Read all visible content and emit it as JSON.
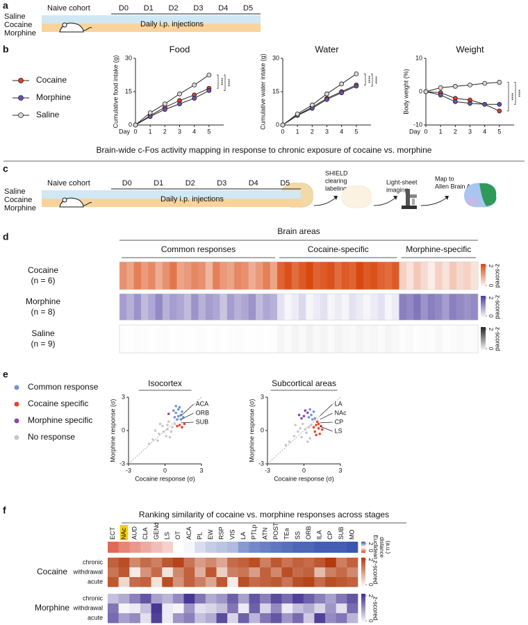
{
  "figure": {
    "panel_labels": [
      "a",
      "b",
      "c",
      "d",
      "e",
      "f"
    ],
    "timeline_a": {
      "cohort": "Naive cohort",
      "days": [
        "D0",
        "D1",
        "D2",
        "D3",
        "D4",
        "D5"
      ],
      "groups": [
        "Saline",
        "Cocaine",
        "Morphine"
      ],
      "treatment": "Daily i.p. injections"
    },
    "timeline_c": {
      "cohort": "Naive cohort",
      "days": [
        "D0",
        "D1",
        "D2",
        "D3",
        "D4",
        "D5"
      ],
      "groups": [
        "Saline",
        "Cocaine",
        "Morphine"
      ],
      "treatment": "Daily i.p. injections"
    },
    "section_title": "Brain-wide c-Fos activity mapping in response to chronic exposure of cocaine vs. morphine",
    "pipeline": [
      [
        "SHIELD",
        "clearing",
        "labeling"
      ],
      [
        "Light-sheet",
        "imaging"
      ],
      [
        "Map to",
        "Allen Brain Atlas"
      ]
    ]
  },
  "chart_data": [
    {
      "type": "line",
      "title": "Food",
      "x": [
        0,
        1,
        2,
        3,
        4,
        5
      ],
      "xlim": [
        0,
        6
      ],
      "xticks": [
        0,
        1,
        2,
        3,
        4,
        5
      ],
      "x_label": "Day",
      "y_label": "Cumulative food intake (g)",
      "ylim": [
        0,
        30
      ],
      "yticks": [
        0,
        15,
        30
      ],
      "series": [
        {
          "name": "Cocaine",
          "color": "#e5392c",
          "values": [
            0,
            4.2,
            8,
            11,
            13.5,
            16.5
          ]
        },
        {
          "name": "Morphine",
          "color": "#6b4fb0",
          "values": [
            0,
            3.8,
            7,
            9.5,
            12,
            15.5
          ]
        },
        {
          "name": "Saline",
          "color": "#d9d9d9",
          "values": [
            0,
            5.5,
            9.5,
            14,
            18,
            22.5
          ]
        }
      ],
      "annotations": [
        "****",
        "****"
      ]
    },
    {
      "type": "line",
      "title": "Water",
      "x": [
        0,
        1,
        2,
        3,
        4,
        5
      ],
      "xlim": [
        0,
        6
      ],
      "xticks": [
        0,
        1,
        2,
        3,
        4,
        5
      ],
      "y_label": "Cumulative water intake (g)",
      "ylim": [
        0,
        30
      ],
      "yticks": [
        0,
        15,
        30
      ],
      "series": [
        {
          "color": "#e5392c",
          "values": [
            0,
            4.5,
            8,
            12,
            15,
            18
          ]
        },
        {
          "color": "#6b4fb0",
          "values": [
            0,
            4.3,
            7.5,
            11.5,
            14.5,
            17.5
          ]
        },
        {
          "color": "#d9d9d9",
          "values": [
            0,
            5,
            9,
            14,
            18.5,
            23
          ]
        }
      ],
      "annotations": [
        "****",
        "****"
      ]
    },
    {
      "type": "line",
      "title": "Weight",
      "x": [
        0,
        1,
        2,
        3,
        4,
        5
      ],
      "xlim": [
        0,
        6
      ],
      "xticks": [
        0,
        1,
        2,
        3,
        4,
        5
      ],
      "x_label": "Day",
      "y_label": "Body weight (%)",
      "ylim": [
        -10,
        10
      ],
      "yticks": [
        -10,
        0,
        10
      ],
      "series": [
        {
          "color": "#e5392c",
          "values": [
            0,
            -0.3,
            -2,
            -2.5,
            -3.8,
            -5.8
          ]
        },
        {
          "color": "#6b4fb0",
          "values": [
            0,
            -1,
            -3,
            -3.5,
            -3.8,
            -3.8
          ]
        },
        {
          "color": "#d9d9d9",
          "values": [
            0,
            1.2,
            1.6,
            2,
            2.5,
            2.8
          ]
        }
      ],
      "annotations": [
        "****",
        "****"
      ]
    },
    {
      "type": "heatmap",
      "title": "Brain areas",
      "groups": [
        "Common responses",
        "Cocaine-specific",
        "Morphine-specific"
      ],
      "colorbar": {
        "range": [
          0,
          2
        ],
        "ticks": [
          0,
          2
        ],
        "label": "z-scored"
      },
      "rows": [
        {
          "name": "Cocaine",
          "n": "(n = 6)",
          "color": "#d9480f",
          "values": [
            [
              1.2,
              1.0,
              1.4,
              1.1,
              1.3,
              0.9,
              1.2,
              1.5,
              1.0,
              1.1,
              1.3,
              1.2,
              0.8,
              1.4,
              1.1,
              1.0,
              1.3,
              1.2,
              0.9,
              1.1,
              1.4,
              1.0
            ],
            [
              1.7,
              1.9,
              1.6,
              1.8,
              2.0,
              1.7,
              1.8,
              1.9,
              1.6,
              1.8,
              1.7,
              2.0,
              1.8,
              1.9,
              1.7,
              1.6,
              1.8
            ],
            [
              0.5,
              0.3,
              0.6,
              0.4,
              0.2,
              0.5,
              0.3,
              0.6,
              0.4,
              0.5,
              0.3
            ]
          ]
        },
        {
          "name": "Morphine",
          "n": "(n = 8)",
          "color": "#4b3b9e",
          "values": [
            [
              1.0,
              0.8,
              1.1,
              0.7,
              0.9,
              1.2,
              0.8,
              1.0,
              0.9,
              0.7,
              1.1,
              0.8,
              1.0,
              0.9,
              0.6,
              1.0,
              0.8,
              0.9,
              1.1,
              0.7,
              0.9,
              0.8
            ],
            [
              0.3,
              0.1,
              0.2,
              0.4,
              0.1,
              0.2,
              0.3,
              0.1,
              0.2,
              0.1,
              0.3,
              0.2,
              0.1,
              0.2,
              0.3,
              0.1,
              0.2
            ],
            [
              1.3,
              1.2,
              1.4,
              1.1,
              1.3,
              1.2,
              1.0,
              1.3,
              1.2,
              1.1,
              1.2
            ]
          ]
        },
        {
          "name": "Saline",
          "n": "(n = 9)",
          "color": "#222222",
          "values": [
            [
              0.02,
              0.01,
              0.03,
              0.02,
              0.01,
              0.02,
              0.03,
              0.01,
              0.02,
              0.01,
              0.02,
              0.03,
              0.01,
              0.02,
              0.01,
              0.02,
              0.03,
              0.02,
              0.01,
              0.02,
              0.01,
              0.02
            ],
            [
              0.08,
              0.04,
              0.1,
              0.05,
              0.12,
              0.06,
              0.09,
              0.04,
              0.11,
              0.07,
              0.05,
              0.1,
              0.06,
              0.08,
              0.04,
              0.09,
              0.06
            ],
            [
              0.03,
              0.05,
              0.02,
              0.04,
              0.03,
              0.06,
              0.02,
              0.04,
              0.05,
              0.03,
              0.04
            ]
          ]
        }
      ]
    },
    {
      "type": "scatter",
      "title": "Isocortex",
      "x_label": "Cocaine response (σ)",
      "y_label": "Morphine response (σ)",
      "xlim": [
        -3,
        3
      ],
      "ylim": [
        -3,
        3
      ],
      "xticks": [
        -3,
        0,
        3
      ],
      "yticks": [
        -3,
        0,
        3
      ],
      "diagonal": true,
      "annotations": [
        "ACA",
        "ORB",
        "SUB"
      ],
      "series": [
        {
          "name": "Common response",
          "color": "#7394d8",
          "x": [
            0.9,
            1.1,
            1.3,
            0.8,
            1.2,
            1.0,
            1.4,
            0.7,
            1.5,
            1.1,
            0.9,
            1.3
          ],
          "y": [
            1.6,
            1.9,
            1.4,
            1.2,
            2.1,
            1.0,
            1.7,
            1.8,
            1.2,
            1.3,
            2.2,
            1.0
          ]
        },
        {
          "name": "Cocaine specific",
          "color": "#e8452b",
          "x": [
            1.2,
            1.4,
            1.0,
            1.6
          ],
          "y": [
            0.5,
            0.3,
            0.4,
            0.6
          ]
        },
        {
          "name": "Morphine specific",
          "color": "#8e44ad",
          "x": [
            0.3
          ],
          "y": [
            1.5
          ]
        },
        {
          "name": "No response",
          "color": "#c8c8c8",
          "x": [
            -0.5,
            0.2,
            -0.2,
            0.5,
            -1.0,
            0.1,
            0.6,
            -0.4,
            0.3,
            -0.8,
            0.4,
            -1.3,
            0.8,
            -0.1,
            0.2,
            -0.6
          ],
          "y": [
            -0.3,
            0.1,
            0.4,
            -0.1,
            -0.8,
            -0.5,
            0.3,
            0.6,
            0.8,
            0.0,
            -0.6,
            -1.2,
            0.6,
            -0.1,
            0.5,
            -0.9
          ]
        }
      ]
    },
    {
      "type": "scatter",
      "title": "Subcortical areas",
      "x_label": "Cocaine response (σ)",
      "y_label": "Morphine response (σ)",
      "xlim": [
        -3,
        3
      ],
      "ylim": [
        -3,
        3
      ],
      "xticks": [
        -3,
        0,
        3
      ],
      "yticks": [
        -3,
        0,
        3
      ],
      "diagonal": true,
      "annotations": [
        "LA",
        "NAc",
        "CP",
        "LS"
      ],
      "series": [
        {
          "color": "#7394d8",
          "x": [
            0.6,
            0.8,
            0.4,
            0.9,
            0.5,
            0.7
          ],
          "y": [
            1.4,
            1.7,
            1.2,
            1.1,
            1.9,
            1.0
          ]
        },
        {
          "color": "#e8452b",
          "x": [
            1.0,
            1.2,
            0.9,
            1.4,
            1.1,
            1.3,
            0.8,
            1.5,
            1.0,
            1.2
          ],
          "y": [
            0.5,
            0.2,
            -0.1,
            0.4,
            0.8,
            -0.3,
            0.3,
            0.1,
            -0.4,
            0.6
          ]
        },
        {
          "color": "#8e44ad",
          "x": [
            0.0,
            -0.2,
            0.3,
            0.1,
            -0.4
          ],
          "y": [
            1.3,
            1.1,
            1.6,
            1.8,
            1.4
          ]
        },
        {
          "color": "#c8c8c8",
          "x": [
            -0.3,
            0.2,
            -0.8,
            0.4,
            -0.1,
            -1.2,
            0.5,
            -0.5,
            0.1,
            -0.7,
            0.3,
            -0.2,
            0.6,
            -1.5
          ],
          "y": [
            0.2,
            -0.2,
            -0.5,
            0.3,
            0.6,
            -1.0,
            -0.7,
            -0.1,
            0.1,
            0.5,
            -1.0,
            -0.6,
            0.5,
            -1.3
          ]
        }
      ]
    },
    {
      "type": "heatmap",
      "title": "Ranking similarity of cocaine vs. morphine responses across stages",
      "columns": [
        "ECT",
        "NAc",
        "AUD",
        "CLA",
        "GENd",
        "LS",
        "OT",
        "ACA",
        "PL",
        "EW",
        "RSP",
        "VIS",
        "LA",
        "PTLp",
        "ATN",
        "POST",
        "TEa",
        "SS",
        "ORB",
        "ILA",
        "CP",
        "SUB",
        "MO"
      ],
      "highlight_index": 1,
      "highlight_color": "#f5d000",
      "distance": {
        "label": [
          "Euclidean",
          "distance",
          "(a.u.)"
        ],
        "range": [
          0,
          2
        ],
        "ticks": [
          0,
          2
        ],
        "colors": [
          "#d9432f",
          "#ffffff",
          "#3a56b0"
        ],
        "values": [
          0.2,
          0.35,
          0.45,
          0.55,
          0.65,
          0.75,
          1.0,
          1.05,
          1.2,
          1.3,
          1.35,
          1.4,
          1.6,
          1.7,
          1.75,
          1.8,
          1.85,
          1.9,
          1.9,
          1.95,
          1.95,
          1.95,
          2.0
        ]
      },
      "groups": [
        {
          "name": "Cocaine",
          "color": "#b23a0c",
          "colorbar": {
            "range": [
              0,
              2
            ],
            "ticks": [
              0,
              2
            ],
            "label": "z-scored"
          },
          "rows": [
            {
              "name": "chronic",
              "values": [
                1.6,
                1.8,
                1.2,
                1.5,
                1.3,
                1.7,
                1.9,
                1.4,
                1.0,
                1.2,
                0.9,
                1.5,
                1.6,
                1.8,
                1.3,
                1.7,
                1.4,
                1.6,
                1.5,
                1.7,
                2.0,
                1.3,
                1.6
              ]
            },
            {
              "name": "withdrawal",
              "values": [
                1.4,
                1.7,
                0.2,
                1.1,
                1.5,
                0.3,
                1.2,
                1.6,
                0.8,
                1.7,
                0.5,
                1.3,
                1.4,
                1.0,
                1.6,
                1.2,
                1.8,
                1.5,
                1.6,
                0.7,
                1.3,
                1.5,
                1.2
              ]
            },
            {
              "name": "acute",
              "values": [
                1.7,
                0.4,
                1.5,
                1.6,
                0.3,
                1.8,
                1.1,
                1.6,
                1.3,
                0.9,
                1.7,
                0.2,
                1.8,
                1.5,
                1.6,
                1.7,
                1.4,
                1.8,
                1.9,
                1.5,
                1.8,
                1.7,
                1.6
              ]
            }
          ]
        },
        {
          "name": "Morphine",
          "color": "#3e2c8f",
          "colorbar": {
            "range": [
              0,
              2
            ],
            "ticks": [
              0,
              2
            ],
            "label": "z-scored"
          },
          "rows": [
            {
              "name": "chronic",
              "values": [
                0.6,
                0.8,
                1.2,
                1.6,
                0.9,
                0.7,
                1.1,
                1.9,
                1.3,
                0.8,
                1.0,
                1.5,
                0.9,
                1.6,
                1.2,
                1.7,
                1.4,
                1.8,
                1.5,
                1.2,
                0.9,
                1.3,
                1.6
              ]
            },
            {
              "name": "withdrawal",
              "values": [
                1.3,
                0.1,
                0.2,
                0.6,
                1.9,
                0.2,
                0.1,
                1.0,
                0.3,
                0.4,
                0.6,
                1.3,
                0.2,
                1.5,
                0.4,
                1.1,
                0.2,
                0.6,
                0.8,
                0.4,
                1.0,
                0.3,
                1.4
              ]
            },
            {
              "name": "acute",
              "values": [
                1.4,
                0.9,
                1.1,
                0.3,
                1.8,
                0.2,
                1.0,
                1.2,
                0.6,
                0.8,
                1.7,
                0.4,
                1.5,
                0.7,
                1.3,
                1.6,
                1.0,
                1.4,
                0.5,
                1.8,
                1.1,
                1.3,
                0.7
              ]
            }
          ]
        }
      ]
    }
  ]
}
